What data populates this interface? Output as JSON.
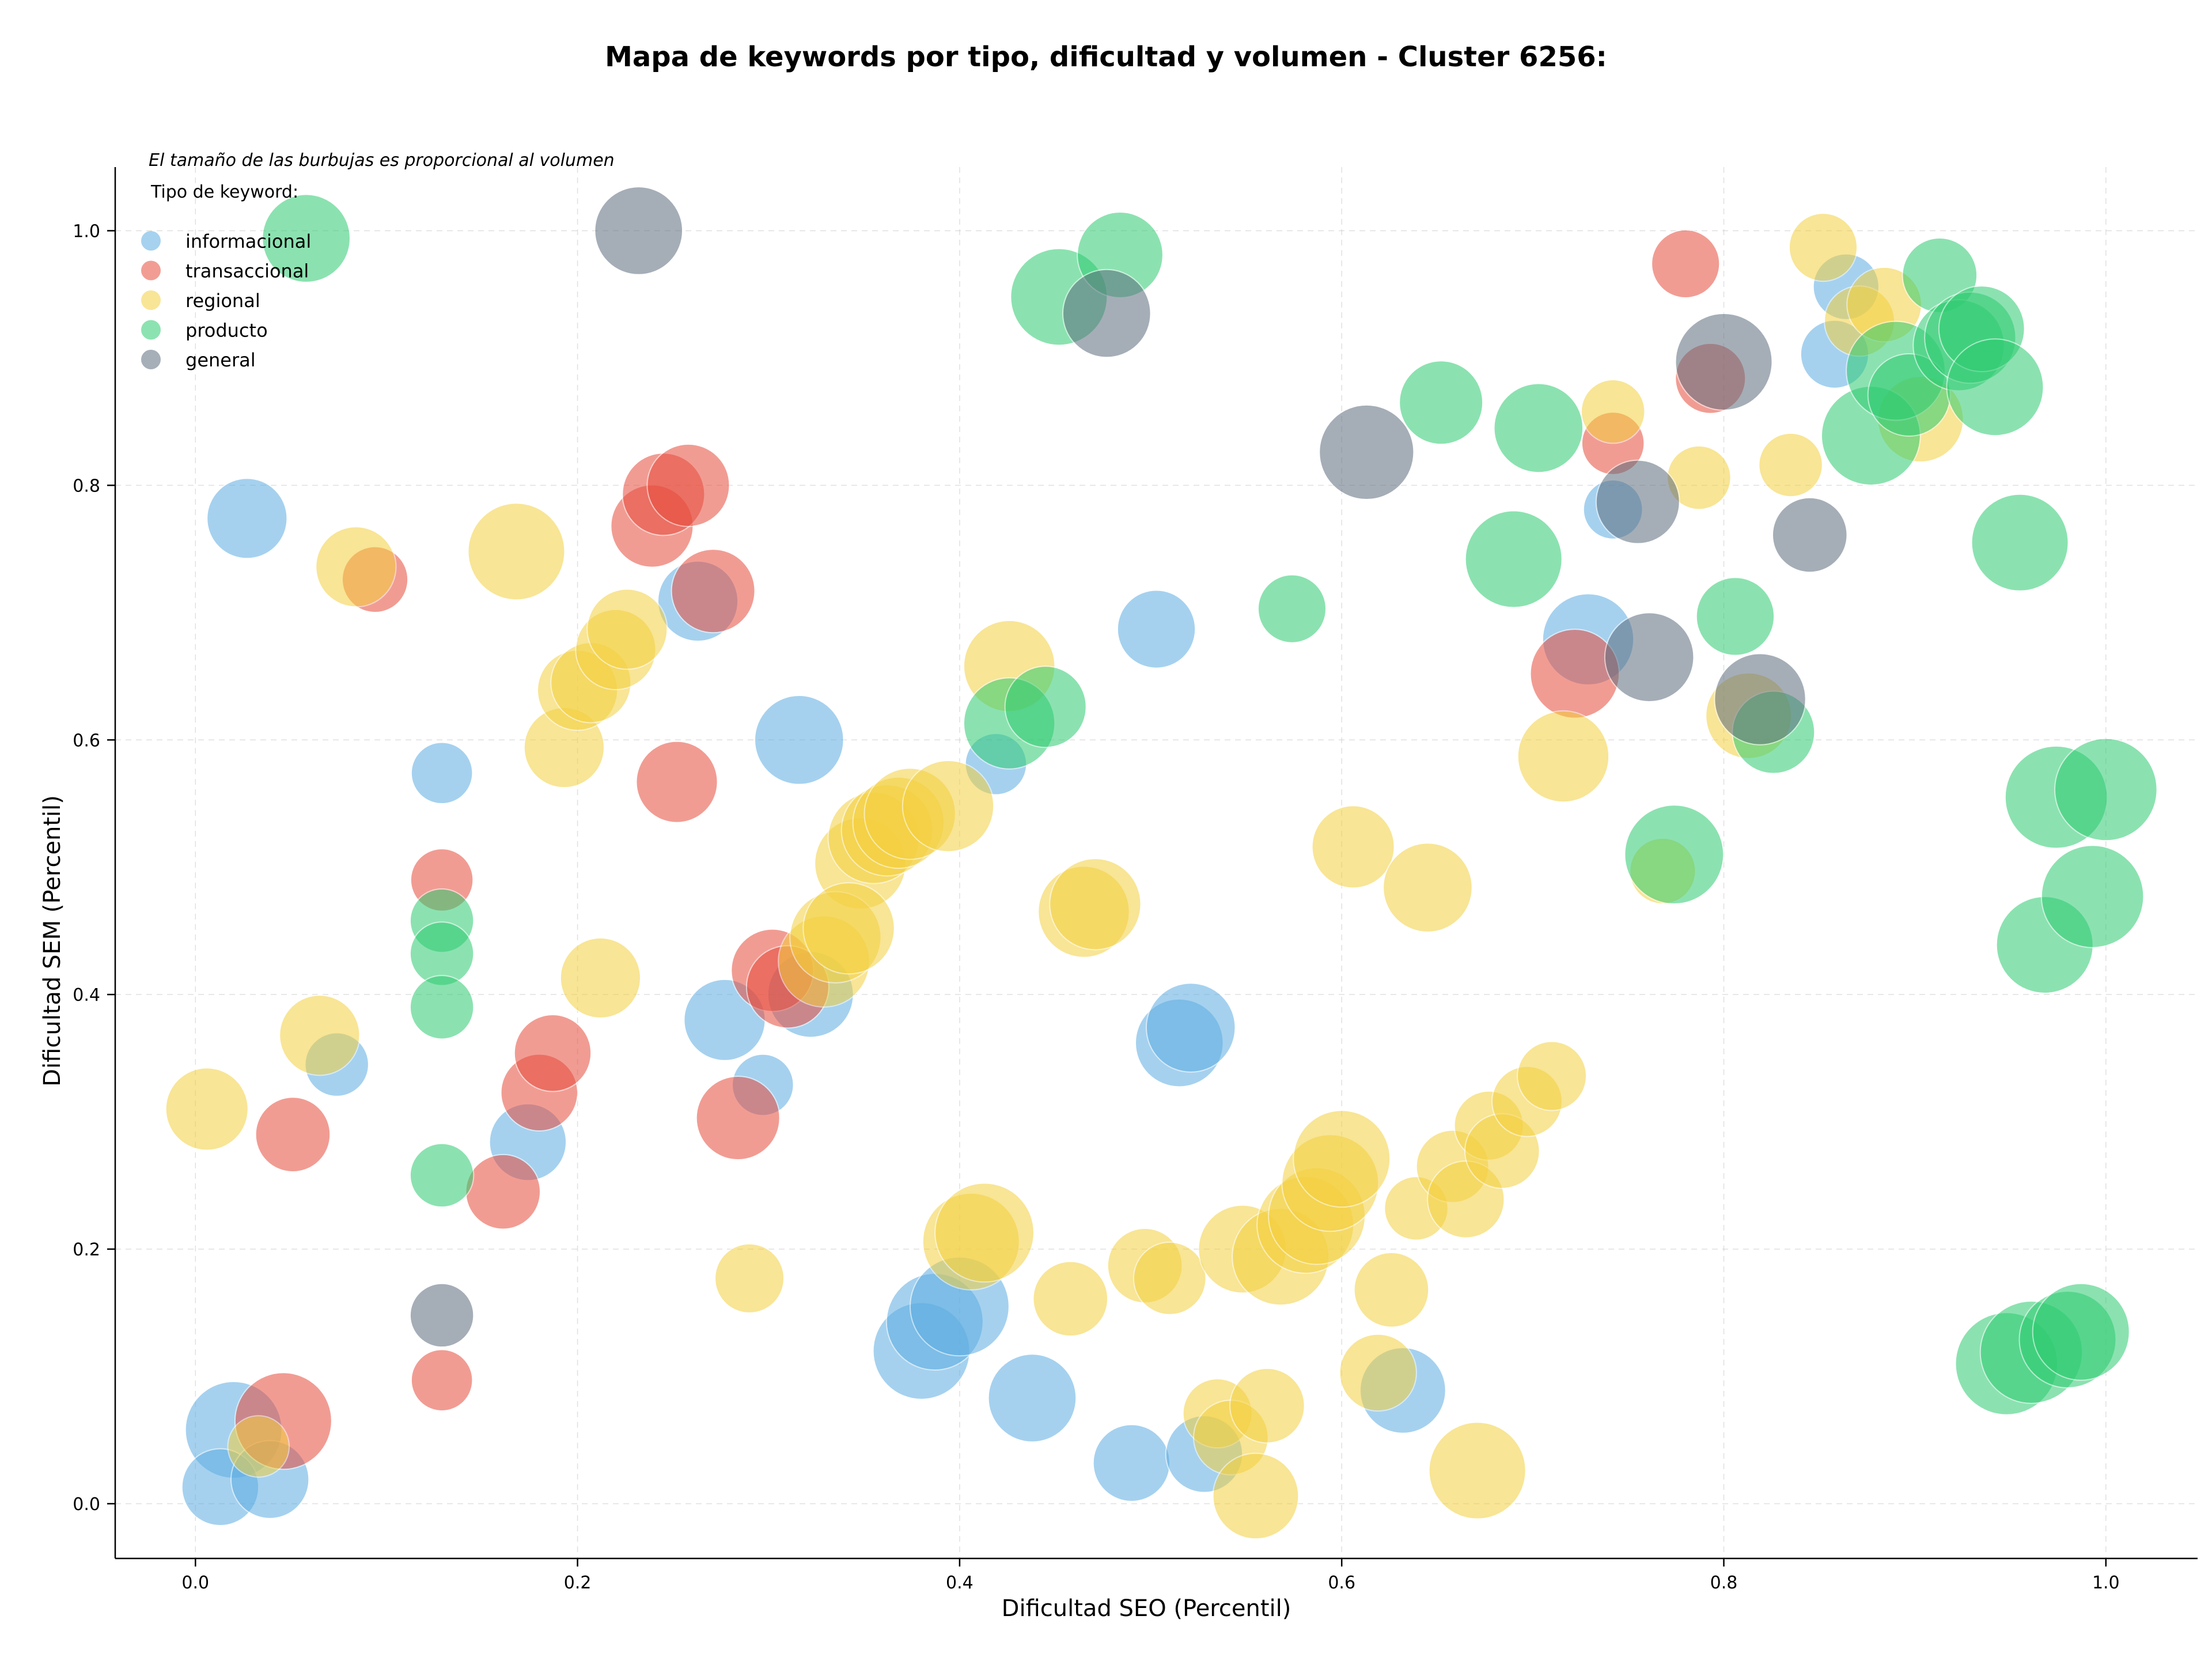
{
  "chart_data": {
    "type": "scatter",
    "title": "Mapa de keywords por tipo, dificultad y volumen - Cluster 6256:",
    "xlabel": "Dificultad SEO (Percentil)",
    "ylabel": "Dificultad SEM (Percentil)",
    "xlim": [
      -0.042,
      1.048
    ],
    "ylim": [
      -0.043,
      1.05
    ],
    "xticks": [
      "0.0",
      "0.2",
      "0.4",
      "0.6",
      "0.8",
      "1.0"
    ],
    "yticks": [
      "0.0",
      "0.2",
      "0.4",
      "0.6",
      "0.8",
      "1.0"
    ],
    "grid": true,
    "note": "El tamaño de las burbujas es proporcional al volumen",
    "legend": {
      "title": "Tipo de keyword:",
      "placement": "top-left",
      "entries": [
        {
          "name": "informacional",
          "color": "#5dade2"
        },
        {
          "name": "transaccional",
          "color": "#e74c3c"
        },
        {
          "name": "regional",
          "color": "#f4d03f"
        },
        {
          "name": "producto",
          "color": "#2ecc71"
        },
        {
          "name": "general",
          "color": "#5d6d7e"
        }
      ]
    },
    "series": [
      {
        "name": "informacional",
        "color": "#5dade2",
        "points": [
          [
            0.027,
            0.774,
            0.35
          ],
          [
            0.02,
            0.058,
            0.5
          ],
          [
            0.013,
            0.013,
            0.32
          ],
          [
            0.039,
            0.019,
            0.33
          ],
          [
            0.074,
            0.345,
            0.2
          ],
          [
            0.129,
            0.574,
            0.18
          ],
          [
            0.174,
            0.284,
            0.32
          ],
          [
            0.263,
            0.709,
            0.35
          ],
          [
            0.277,
            0.38,
            0.36
          ],
          [
            0.297,
            0.329,
            0.18
          ],
          [
            0.316,
            0.6,
            0.43
          ],
          [
            0.322,
            0.4,
            0.4
          ],
          [
            0.38,
            0.12,
            0.5
          ],
          [
            0.387,
            0.143,
            0.5
          ],
          [
            0.4,
            0.155,
            0.52
          ],
          [
            0.419,
            0.581,
            0.18
          ],
          [
            0.438,
            0.083,
            0.42
          ],
          [
            0.49,
            0.032,
            0.32
          ],
          [
            0.503,
            0.687,
            0.33
          ],
          [
            0.515,
            0.362,
            0.42
          ],
          [
            0.521,
            0.374,
            0.43
          ],
          [
            0.528,
            0.039,
            0.32
          ],
          [
            0.632,
            0.089,
            0.4
          ],
          [
            0.729,
            0.679,
            0.45
          ],
          [
            0.742,
            0.781,
            0.16
          ],
          [
            0.858,
            0.903,
            0.24
          ],
          [
            0.864,
            0.956,
            0.22
          ]
        ]
      },
      {
        "name": "transaccional",
        "color": "#e74c3c",
        "points": [
          [
            0.046,
            0.065,
            0.5
          ],
          [
            0.051,
            0.29,
            0.3
          ],
          [
            0.094,
            0.726,
            0.22
          ],
          [
            0.129,
            0.49,
            0.19
          ],
          [
            0.129,
            0.097,
            0.18
          ],
          [
            0.161,
            0.245,
            0.3
          ],
          [
            0.18,
            0.323,
            0.32
          ],
          [
            0.187,
            0.354,
            0.32
          ],
          [
            0.239,
            0.768,
            0.37
          ],
          [
            0.245,
            0.793,
            0.37
          ],
          [
            0.258,
            0.8,
            0.37
          ],
          [
            0.252,
            0.567,
            0.36
          ],
          [
            0.271,
            0.717,
            0.38
          ],
          [
            0.284,
            0.303,
            0.38
          ],
          [
            0.302,
            0.419,
            0.37
          ],
          [
            0.31,
            0.406,
            0.37
          ],
          [
            0.722,
            0.652,
            0.43
          ],
          [
            0.742,
            0.833,
            0.19
          ],
          [
            0.78,
            0.974,
            0.24
          ],
          [
            0.793,
            0.884,
            0.26
          ]
        ]
      },
      {
        "name": "regional",
        "color": "#f4d03f",
        "points": [
          [
            0.006,
            0.31,
            0.37
          ],
          [
            0.033,
            0.045,
            0.18
          ],
          [
            0.065,
            0.368,
            0.35
          ],
          [
            0.084,
            0.736,
            0.35
          ],
          [
            0.168,
            0.748,
            0.5
          ],
          [
            0.193,
            0.594,
            0.35
          ],
          [
            0.2,
            0.639,
            0.35
          ],
          [
            0.207,
            0.645,
            0.35
          ],
          [
            0.212,
            0.413,
            0.35
          ],
          [
            0.22,
            0.671,
            0.35
          ],
          [
            0.226,
            0.687,
            0.35
          ],
          [
            0.29,
            0.177,
            0.25
          ],
          [
            0.348,
            0.503,
            0.45
          ],
          [
            0.355,
            0.523,
            0.45
          ],
          [
            0.362,
            0.529,
            0.45
          ],
          [
            0.368,
            0.535,
            0.45
          ],
          [
            0.374,
            0.542,
            0.45
          ],
          [
            0.394,
            0.548,
            0.45
          ],
          [
            0.329,
            0.426,
            0.45
          ],
          [
            0.335,
            0.445,
            0.45
          ],
          [
            0.342,
            0.452,
            0.45
          ],
          [
            0.406,
            0.206,
            0.5
          ],
          [
            0.413,
            0.213,
            0.52
          ],
          [
            0.426,
            0.658,
            0.45
          ],
          [
            0.458,
            0.161,
            0.3
          ],
          [
            0.465,
            0.465,
            0.45
          ],
          [
            0.471,
            0.471,
            0.45
          ],
          [
            0.497,
            0.187,
            0.3
          ],
          [
            0.51,
            0.177,
            0.28
          ],
          [
            0.535,
            0.071,
            0.25
          ],
          [
            0.542,
            0.052,
            0.3
          ],
          [
            0.548,
            0.2,
            0.42
          ],
          [
            0.555,
            0.006,
            0.4
          ],
          [
            0.561,
            0.077,
            0.3
          ],
          [
            0.568,
            0.194,
            0.5
          ],
          [
            0.581,
            0.219,
            0.5
          ],
          [
            0.587,
            0.226,
            0.5
          ],
          [
            0.594,
            0.252,
            0.5
          ],
          [
            0.6,
            0.271,
            0.5
          ],
          [
            0.606,
            0.516,
            0.37
          ],
          [
            0.619,
            0.103,
            0.32
          ],
          [
            0.626,
            0.168,
            0.3
          ],
          [
            0.639,
            0.232,
            0.2
          ],
          [
            0.645,
            0.484,
            0.43
          ],
          [
            0.658,
            0.265,
            0.28
          ],
          [
            0.665,
            0.239,
            0.32
          ],
          [
            0.671,
            0.026,
            0.5
          ],
          [
            0.677,
            0.297,
            0.25
          ],
          [
            0.684,
            0.277,
            0.3
          ],
          [
            0.697,
            0.316,
            0.26
          ],
          [
            0.71,
            0.336,
            0.25
          ],
          [
            0.716,
            0.587,
            0.45
          ],
          [
            0.742,
            0.858,
            0.2
          ],
          [
            0.768,
            0.497,
            0.22
          ],
          [
            0.787,
            0.806,
            0.2
          ],
          [
            0.813,
            0.619,
            0.4
          ],
          [
            0.835,
            0.816,
            0.2
          ],
          [
            0.852,
            0.987,
            0.24
          ],
          [
            0.871,
            0.929,
            0.26
          ],
          [
            0.884,
            0.942,
            0.3
          ],
          [
            0.903,
            0.852,
            0.4
          ]
        ]
      },
      {
        "name": "producto",
        "color": "#2ecc71",
        "points": [
          [
            0.058,
            0.994,
            0.42
          ],
          [
            0.129,
            0.458,
            0.2
          ],
          [
            0.129,
            0.432,
            0.2
          ],
          [
            0.129,
            0.39,
            0.2
          ],
          [
            0.129,
            0.258,
            0.2
          ],
          [
            0.426,
            0.613,
            0.45
          ],
          [
            0.445,
            0.626,
            0.36
          ],
          [
            0.452,
            0.948,
            0.5
          ],
          [
            0.484,
            0.981,
            0.4
          ],
          [
            0.574,
            0.703,
            0.24
          ],
          [
            0.652,
            0.865,
            0.38
          ],
          [
            0.69,
            0.742,
            0.5
          ],
          [
            0.703,
            0.845,
            0.43
          ],
          [
            0.774,
            0.51,
            0.52
          ],
          [
            0.806,
            0.697,
            0.33
          ],
          [
            0.826,
            0.606,
            0.37
          ],
          [
            0.877,
            0.839,
            0.52
          ],
          [
            0.89,
            0.89,
            0.52
          ],
          [
            0.897,
            0.871,
            0.37
          ],
          [
            0.913,
            0.965,
            0.3
          ],
          [
            0.923,
            0.91,
            0.45
          ],
          [
            0.929,
            0.916,
            0.45
          ],
          [
            0.935,
            0.923,
            0.4
          ],
          [
            0.942,
            0.877,
            0.5
          ],
          [
            0.955,
            0.755,
            0.5
          ],
          [
            0.948,
            0.11,
            0.55
          ],
          [
            0.961,
            0.119,
            0.55
          ],
          [
            0.968,
            0.439,
            0.5
          ],
          [
            0.974,
            0.555,
            0.55
          ],
          [
            0.98,
            0.129,
            0.5
          ],
          [
            0.987,
            0.135,
            0.5
          ],
          [
            0.993,
            0.477,
            0.55
          ],
          [
            1.0,
            0.561,
            0.55
          ]
        ]
      },
      {
        "name": "general",
        "color": "#5d6d7e",
        "points": [
          [
            0.129,
            0.148,
            0.2
          ],
          [
            0.232,
            1.0,
            0.42
          ],
          [
            0.477,
            0.935,
            0.42
          ],
          [
            0.613,
            0.826,
            0.48
          ],
          [
            0.755,
            0.787,
            0.38
          ],
          [
            0.761,
            0.665,
            0.43
          ],
          [
            0.8,
            0.897,
            0.5
          ],
          [
            0.819,
            0.632,
            0.45
          ],
          [
            0.845,
            0.761,
            0.3
          ]
        ]
      }
    ]
  }
}
